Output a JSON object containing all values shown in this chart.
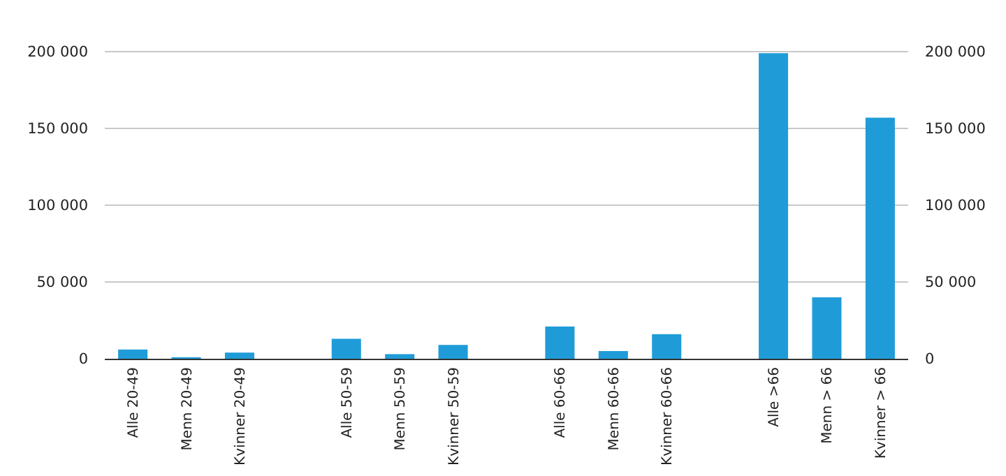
{
  "chart_data": {
    "type": "bar",
    "categories": [
      "Alle 20-49",
      "Menn 20-49",
      "Kvinner 20-49",
      null,
      "Alle 50-59",
      "Menn 50-59",
      "Kvinner 50-59",
      null,
      "Alle 60-66",
      "Menn 60-66",
      "Kvinner 60-66",
      null,
      "Alle >66",
      "Menn > 66",
      "Kvinner > 66"
    ],
    "values": [
      6000,
      1000,
      4000,
      null,
      13000,
      3000,
      9000,
      null,
      21000,
      5000,
      16000,
      null,
      199000,
      40000,
      157000
    ],
    "color": "#1f9cd8",
    "ylim": [
      0,
      200000
    ],
    "yticks": [
      {
        "value": 0,
        "label": "0"
      },
      {
        "value": 50000,
        "label": "50 000"
      },
      {
        "value": 100000,
        "label": "100 000"
      },
      {
        "value": 150000,
        "label": "150 000"
      },
      {
        "value": 200000,
        "label": "200 000"
      }
    ],
    "y2lim": [
      0,
      200000
    ],
    "y2ticks": [
      {
        "value": 0,
        "label": "0"
      },
      {
        "value": 50000,
        "label": "50 000"
      },
      {
        "value": 100000,
        "label": "100 000"
      },
      {
        "value": 150000,
        "label": "150 000"
      },
      {
        "value": 200000,
        "label": "200 000"
      }
    ],
    "grid": "y"
  }
}
